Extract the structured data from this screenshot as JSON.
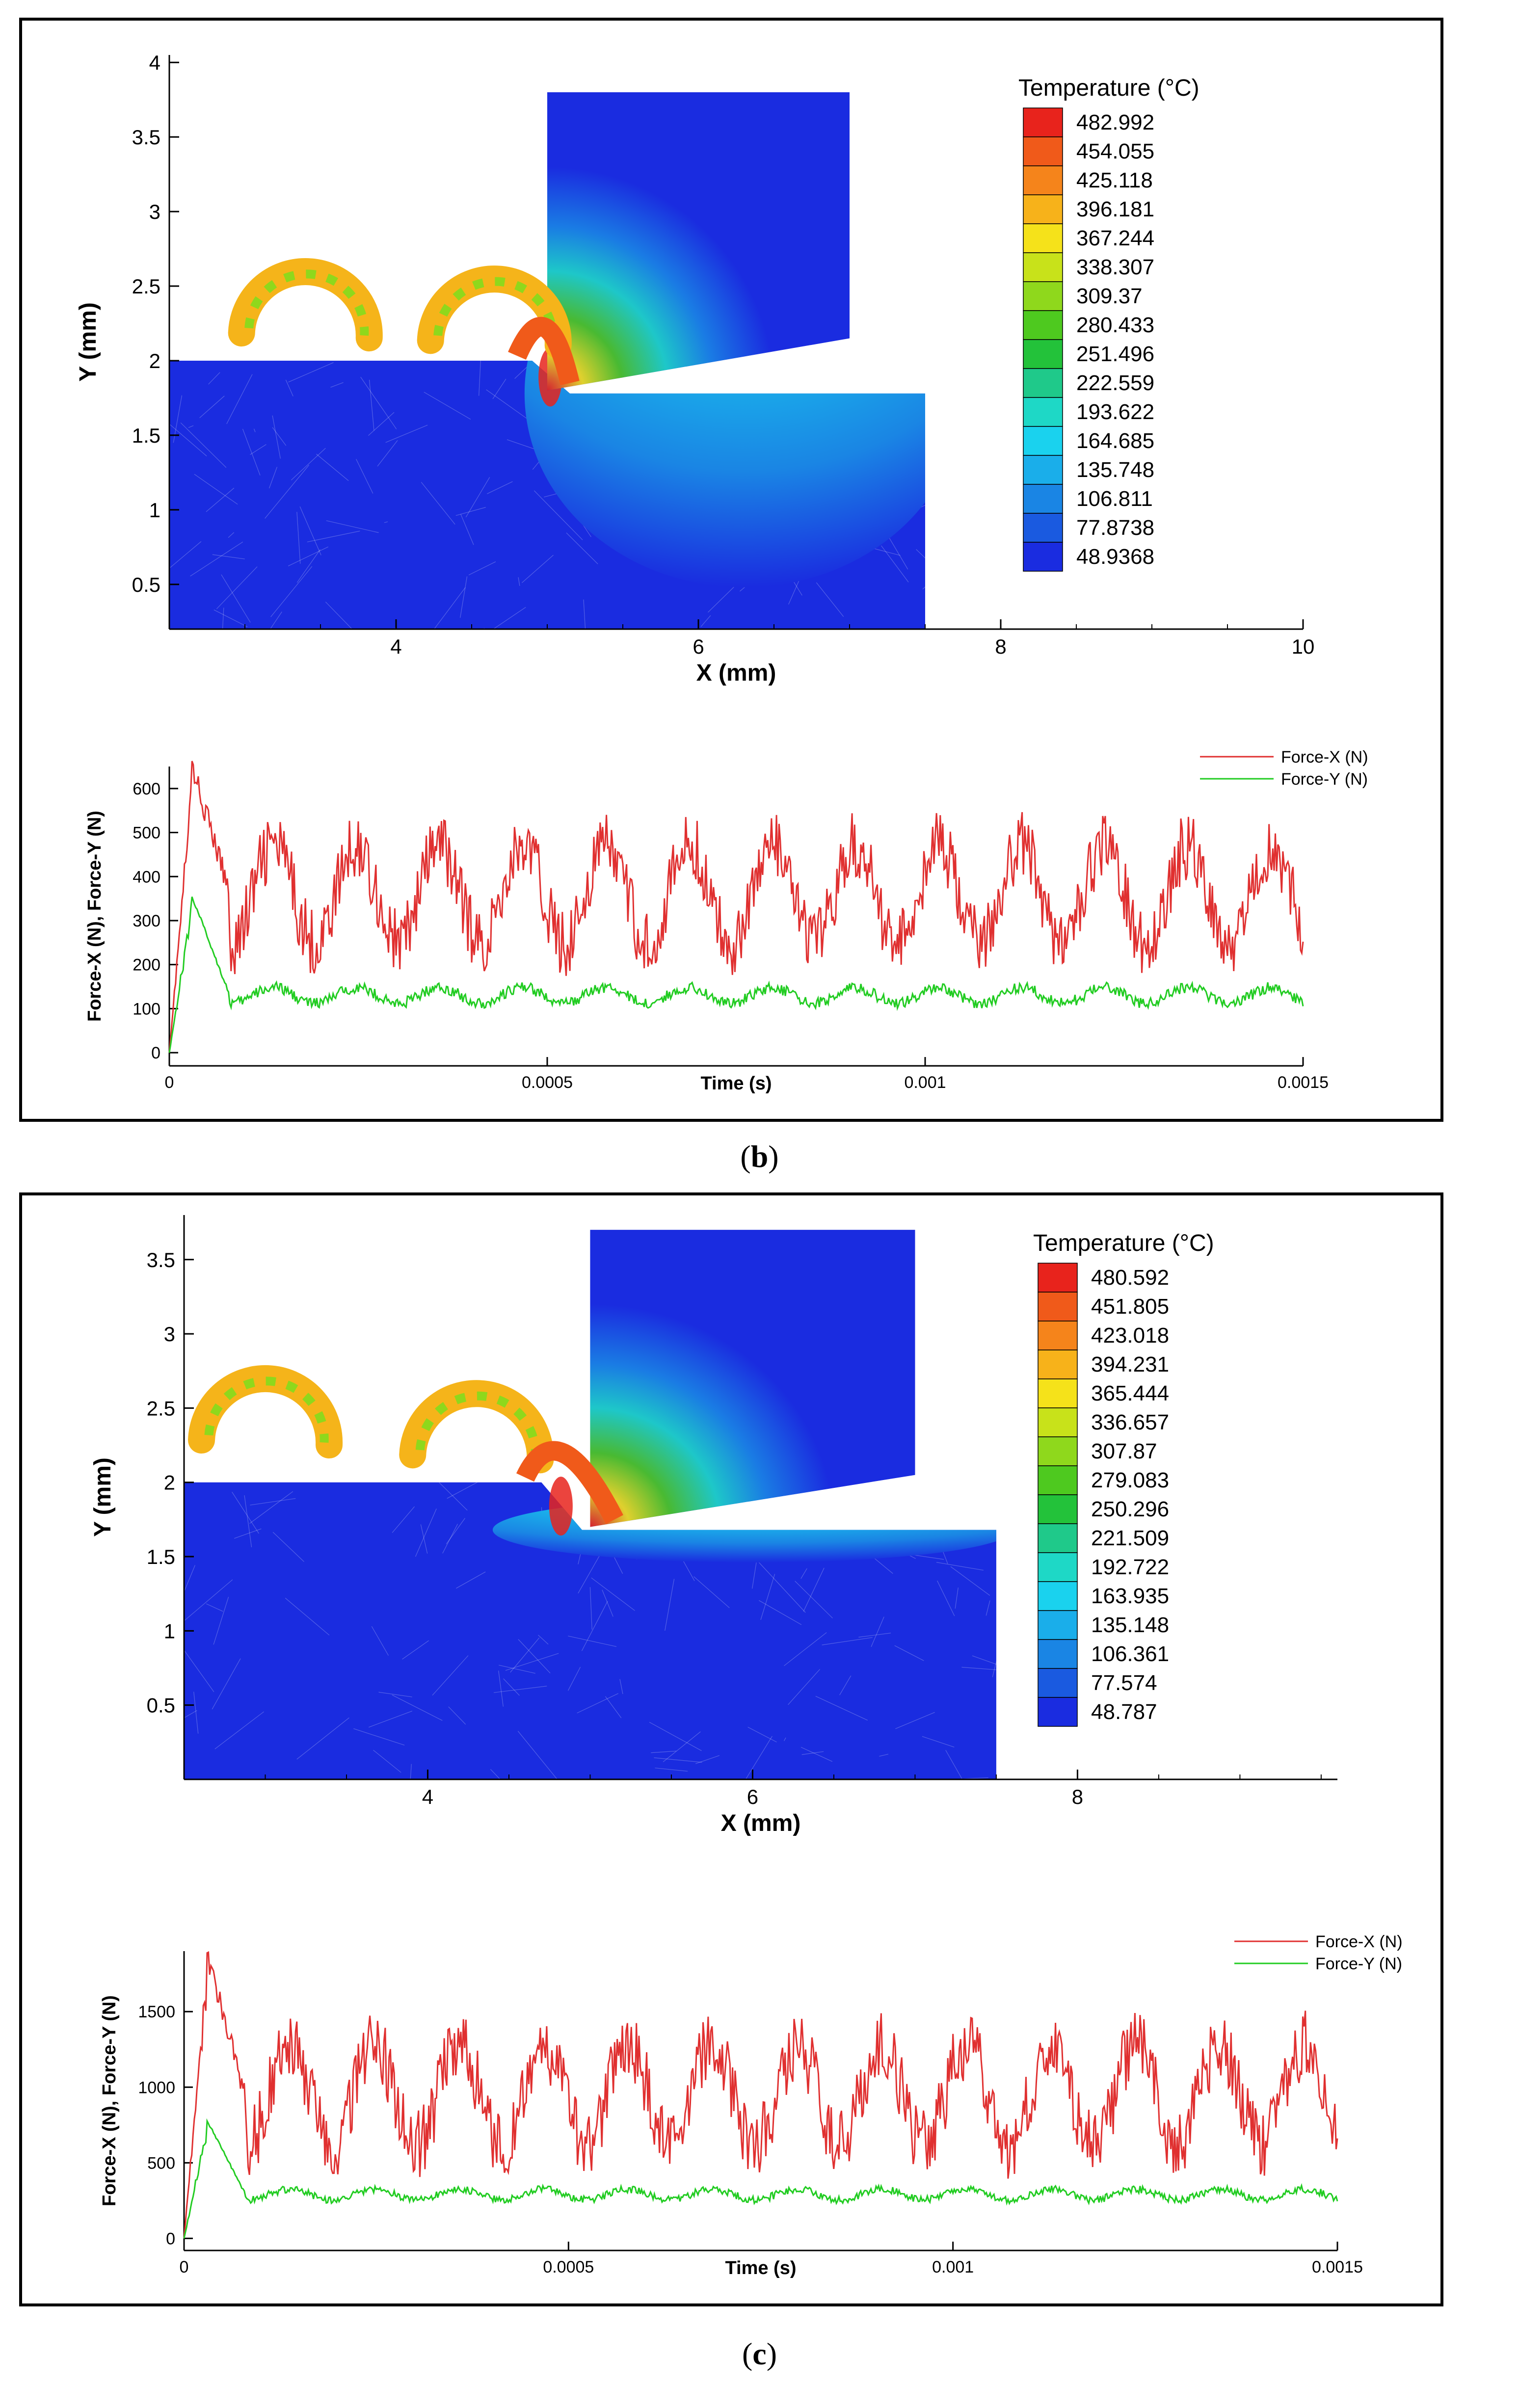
{
  "panels": [
    {
      "caption_letter": "b",
      "contour": {
        "type": "contour",
        "title": "Temperature (°C)",
        "xlabel": "X (mm)",
        "ylabel": "Y (mm)",
        "xlim": [
          2.5,
          10
        ],
        "ylim": [
          0.2,
          4.05
        ],
        "xticks": [
          4,
          6,
          8,
          10
        ],
        "yticks": [
          0.5,
          1,
          1.5,
          2,
          2.5,
          3,
          3.5,
          4
        ],
        "legend_levels": [
          "482.992",
          "454.055",
          "425.118",
          "396.181",
          "367.244",
          "338.307",
          "309.37",
          "280.433",
          "251.496",
          "222.559",
          "193.622",
          "164.685",
          "135.748",
          "106.811",
          "77.8738",
          "48.9368"
        ],
        "workpiece": {
          "x0": 2.5,
          "x1": 7.5,
          "y_top_left": 2.0,
          "y_top_right": 1.78,
          "step_x": 4.9,
          "y_bottom": 0.2
        },
        "tool": {
          "x0": 5.0,
          "x1": 7.0,
          "y_top": 3.8,
          "tip_y": 1.8,
          "right_bottom_y": 2.15
        },
        "heat_zone": {
          "cx": 6.3,
          "cy": 1.78,
          "rx": 1.45,
          "ry": 1.3
        }
      },
      "force": {
        "type": "line",
        "xlabel": "Time (s)",
        "ylabel": "Force-X (N), Force-Y (N)",
        "xlim": [
          0,
          0.0015
        ],
        "ylim": [
          -30,
          650
        ],
        "xticks": [
          "0",
          "0.0005",
          "0.001",
          "0.0015"
        ],
        "xtick_values": [
          0,
          0.0005,
          0.001,
          0.0015
        ],
        "yticks": [
          0,
          100,
          200,
          300,
          400,
          500,
          600
        ],
        "series": [
          {
            "name": "Force-X (N)",
            "color": "#e03030",
            "peak": 650,
            "mean": 360,
            "amp": 110,
            "period": 0.00011
          },
          {
            "name": "Force-Y (N)",
            "color": "#22cc22",
            "peak": 355,
            "mean": 130,
            "amp": 18,
            "period": 0.00011
          }
        ]
      }
    },
    {
      "caption_letter": "c",
      "contour": {
        "type": "contour",
        "title": "Temperature (°C)",
        "xlabel": "X (mm)",
        "ylabel": "Y (mm)",
        "xlim": [
          2.5,
          9.6
        ],
        "ylim": [
          0.0,
          3.8
        ],
        "xticks": [
          4,
          6,
          8
        ],
        "yticks": [
          0.5,
          1,
          1.5,
          2,
          2.5,
          3,
          3.5
        ],
        "legend_levels": [
          "480.592",
          "451.805",
          "423.018",
          "394.231",
          "365.444",
          "336.657",
          "307.87",
          "279.083",
          "250.296",
          "221.509",
          "192.722",
          "163.935",
          "135.148",
          "106.361",
          "77.574",
          "48.787"
        ],
        "workpiece": {
          "x0": 2.5,
          "x1": 7.5,
          "y_top_left": 2.0,
          "y_top_right": 1.68,
          "step_x": 4.7,
          "y_bottom": 0.0
        },
        "tool": {
          "x0": 5.0,
          "x1": 7.0,
          "y_top": 3.7,
          "tip_y": 1.7,
          "right_bottom_y": 2.05
        },
        "heat_zone": {
          "cx": 6.0,
          "cy": 1.68,
          "rx": 1.6,
          "ry": 0.22
        }
      },
      "force": {
        "type": "line",
        "xlabel": "Time (s)",
        "ylabel": "Force-X (N), Force-Y (N)",
        "xlim": [
          0,
          0.0015
        ],
        "ylim": [
          -80,
          1900
        ],
        "xticks": [
          "0",
          "0.0005",
          "0.001",
          "0.0015"
        ],
        "xtick_values": [
          0,
          0.0005,
          0.001,
          0.0015
        ],
        "yticks": [
          0,
          500,
          1000,
          1500
        ],
        "series": [
          {
            "name": "Force-X (N)",
            "color": "#e03030",
            "peak": 1870,
            "mean": 950,
            "amp": 330,
            "period": 0.00011
          },
          {
            "name": "Force-Y (N)",
            "color": "#22cc22",
            "peak": 780,
            "mean": 290,
            "amp": 35,
            "period": 0.00011
          }
        ]
      }
    }
  ]
}
